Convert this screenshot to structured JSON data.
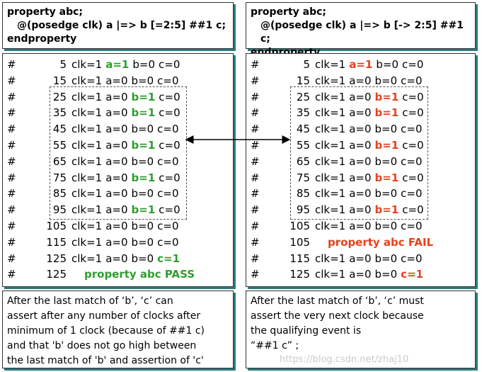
{
  "panels": [
    {
      "code": [
        "property abc;",
        "@(posedge clk) a |=> b [=2:5] ##1 c;",
        "endproperty"
      ],
      "highlight_color": "#2e9e2e",
      "rows": [
        {
          "hash": "#",
          "time": "5",
          "fields": [
            "clk=1",
            "a=1",
            "b=0",
            "c=0"
          ],
          "highlight": 1
        },
        {
          "hash": "#",
          "time": "15",
          "fields": [
            "clk=1",
            "a=0",
            "b=0",
            "c=0"
          ]
        },
        {
          "hash": "#",
          "time": "25",
          "fields": [
            "clk=1",
            "a=0",
            "b=1",
            "c=0"
          ],
          "highlight": 2
        },
        {
          "hash": "#",
          "time": "35",
          "fields": [
            "clk=1",
            "a=0",
            "b=1",
            "c=0"
          ],
          "highlight": 2
        },
        {
          "hash": "#",
          "time": "45",
          "fields": [
            "clk=1",
            "a=0",
            "b=0",
            "c=0"
          ]
        },
        {
          "hash": "#",
          "time": "55",
          "fields": [
            "clk=1",
            "a=0",
            "b=1",
            "c=0"
          ],
          "highlight": 2
        },
        {
          "hash": "#",
          "time": "65",
          "fields": [
            "clk=1",
            "a=0",
            "b=0",
            "c=0"
          ]
        },
        {
          "hash": "#",
          "time": "75",
          "fields": [
            "clk=1",
            "a=0",
            "b=1",
            "c=0"
          ],
          "highlight": 2
        },
        {
          "hash": "#",
          "time": "85",
          "fields": [
            "clk=1",
            "a=0",
            "b=0",
            "c=0"
          ]
        },
        {
          "hash": "#",
          "time": "95",
          "fields": [
            "clk=1",
            "a=0",
            "b=1",
            "c=0"
          ],
          "highlight": 2
        },
        {
          "hash": "#",
          "time": "105",
          "fields": [
            "clk=1",
            "a=0",
            "b=0",
            "c=0"
          ]
        },
        {
          "hash": "#",
          "time": "115",
          "fields": [
            "clk=1",
            "a=0",
            "b=0",
            "c=0"
          ]
        },
        {
          "hash": "#",
          "time": "125",
          "fields": [
            "clk=1",
            "a=0",
            "b=0",
            "c=1"
          ],
          "highlight": 3
        },
        {
          "hash": "#",
          "time": "125",
          "message": "property abc PASS"
        }
      ],
      "note": [
        "After the last match of ‘b’, ‘c’ can",
        "assert after any number of clocks after",
        "minimum of 1 clock (because of ##1 c)",
        "and that 'b' does not go high between",
        "the last match of 'b' and assertion of 'c'"
      ]
    },
    {
      "code": [
        "property abc;",
        "@(posedge clk) a |=> b [-> 2:5] ##1 c;",
        "endproperty"
      ],
      "highlight_color": "#e8401c",
      "rows": [
        {
          "hash": "#",
          "time": "5",
          "fields": [
            "clk=1",
            "a=1",
            "b=0",
            "c=0"
          ],
          "highlight": 1
        },
        {
          "hash": "#",
          "time": "15",
          "fields": [
            "clk=1",
            "a=0",
            "b=0",
            "c=0"
          ]
        },
        {
          "hash": "#",
          "time": "25",
          "fields": [
            "clk=1",
            "a=0",
            "b=1",
            "c=0"
          ],
          "highlight": 2
        },
        {
          "hash": "#",
          "time": "35",
          "fields": [
            "clk=1",
            "a=0",
            "b=1",
            "c=0"
          ],
          "highlight": 2
        },
        {
          "hash": "#",
          "time": "45",
          "fields": [
            "clk=1",
            "a=0",
            "b=0",
            "c=0"
          ]
        },
        {
          "hash": "#",
          "time": "55",
          "fields": [
            "clk=1",
            "a=0",
            "b=1",
            "c=0"
          ],
          "highlight": 2
        },
        {
          "hash": "#",
          "time": "65",
          "fields": [
            "clk=1",
            "a=0",
            "b=0",
            "c=0"
          ]
        },
        {
          "hash": "#",
          "time": "75",
          "fields": [
            "clk=1",
            "a=0",
            "b=1",
            "c=0"
          ],
          "highlight": 2
        },
        {
          "hash": "#",
          "time": "85",
          "fields": [
            "clk=1",
            "a=0",
            "b=0",
            "c=0"
          ]
        },
        {
          "hash": "#",
          "time": "95",
          "fields": [
            "clk=1",
            "a=0",
            "b=1",
            "c=0"
          ],
          "highlight": 2
        },
        {
          "hash": "#",
          "time": "105",
          "fields": [
            "clk=1",
            "a=0",
            "b=0",
            "c=0"
          ]
        },
        {
          "hash": "#",
          "time": "105",
          "message": "property abc FAIL"
        },
        {
          "hash": "#",
          "time": "115",
          "fields": [
            "clk=1",
            "a=0",
            "b=0",
            "c=0"
          ]
        },
        {
          "hash": "#",
          "time": "125",
          "fields": [
            "clk=1",
            "a=0",
            "b=0",
            "c=1"
          ],
          "highlight": 3
        }
      ],
      "note": [
        "After the last match of ‘b’, ‘c’ must",
        "assert the very next clock because",
        "the qualifying event is",
        "“##1 c” ;"
      ]
    }
  ],
  "watermark": "https://blog.csdn.net/zhaj10"
}
